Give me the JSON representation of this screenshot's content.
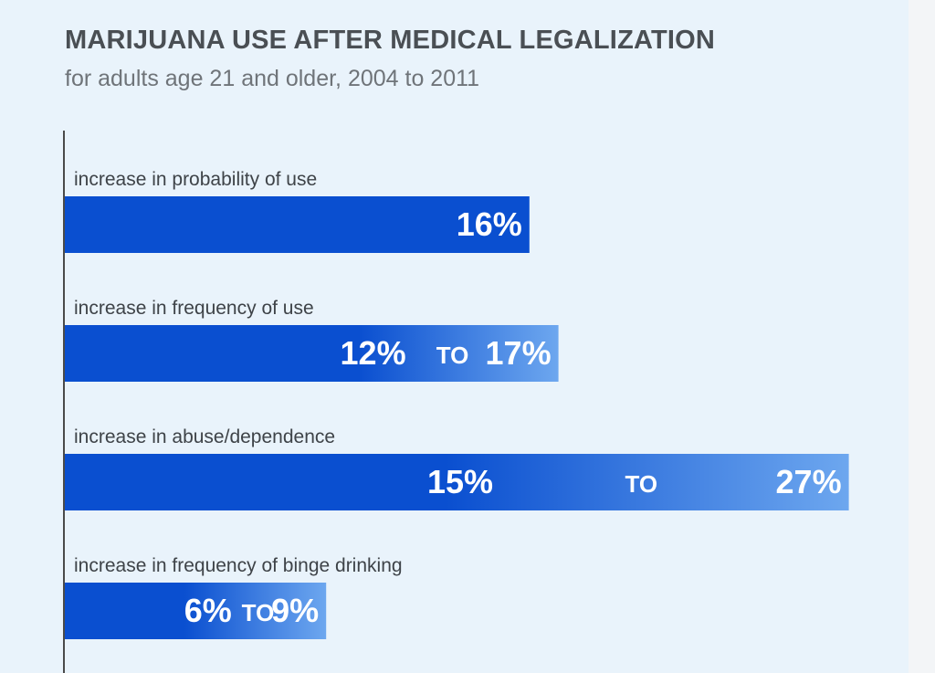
{
  "chart_data": {
    "type": "bar",
    "orientation": "horizontal",
    "title": "MARIJUANA USE AFTER MEDICAL LEGALIZATION",
    "subtitle": "for adults age 21 and older, 2004 to 2011",
    "range_connector": "TO",
    "unit": "%",
    "xlim": [
      0,
      27
    ],
    "categories": [
      "increase in probability of use",
      "increase in frequency of use",
      "increase in abuse/dependence",
      "increase in frequency of binge drinking"
    ],
    "ranges": [
      {
        "low": 16,
        "high": 16,
        "labels": [
          "16%"
        ]
      },
      {
        "low": 12,
        "high": 17,
        "labels": [
          "12%",
          "TO",
          "17%"
        ]
      },
      {
        "low": 15,
        "high": 27,
        "labels": [
          "15%",
          "TO",
          "27%"
        ]
      },
      {
        "low": 6,
        "high": 9,
        "labels": [
          "6%",
          "TO",
          "9%"
        ]
      }
    ],
    "colors": {
      "bar_solid": "#0a4fd0",
      "bar_light": "#6da7ef",
      "background": "#e9f3fb"
    }
  }
}
